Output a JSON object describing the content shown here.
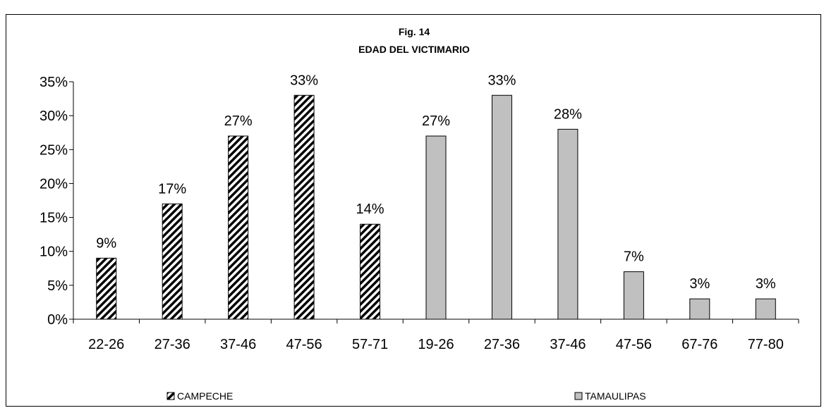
{
  "page": {
    "header_text": "... Campeche Tamaulipas ... Fig. 14 ..."
  },
  "chart_data": {
    "type": "bar",
    "title": "Fig. 14",
    "subtitle": "EDAD DEL VICTIMARIO",
    "xlabel": "",
    "ylabel": "",
    "ylim": [
      0,
      0.35
    ],
    "y_ticks": [
      "0%",
      "5%",
      "10%",
      "15%",
      "20%",
      "25%",
      "30%",
      "35%"
    ],
    "grid": false,
    "legend_position": "bottom",
    "categories": [
      "22-26",
      "27-36",
      "37-46",
      "47-56",
      "57-71",
      "19-26",
      "27-36",
      "37-46",
      "47-56",
      "67-76",
      "77-80"
    ],
    "series": [
      {
        "name": "CAMPECHE",
        "pattern": "hatched",
        "color": "#000000",
        "values": [
          0.09,
          0.17,
          0.27,
          0.33,
          0.14,
          null,
          null,
          null,
          null,
          null,
          null
        ],
        "labels": [
          "9%",
          "17%",
          "27%",
          "33%",
          "14%",
          "",
          "",
          "",
          "",
          "",
          ""
        ]
      },
      {
        "name": "TAMAULIPAS",
        "pattern": "solid",
        "color": "#c0c0c0",
        "values": [
          null,
          null,
          null,
          null,
          null,
          0.27,
          0.33,
          0.28,
          0.07,
          0.03,
          0.03
        ],
        "labels": [
          "",
          "",
          "",
          "",
          "",
          "27%",
          "33%",
          "28%",
          "7%",
          "3%",
          "3%"
        ]
      }
    ]
  }
}
